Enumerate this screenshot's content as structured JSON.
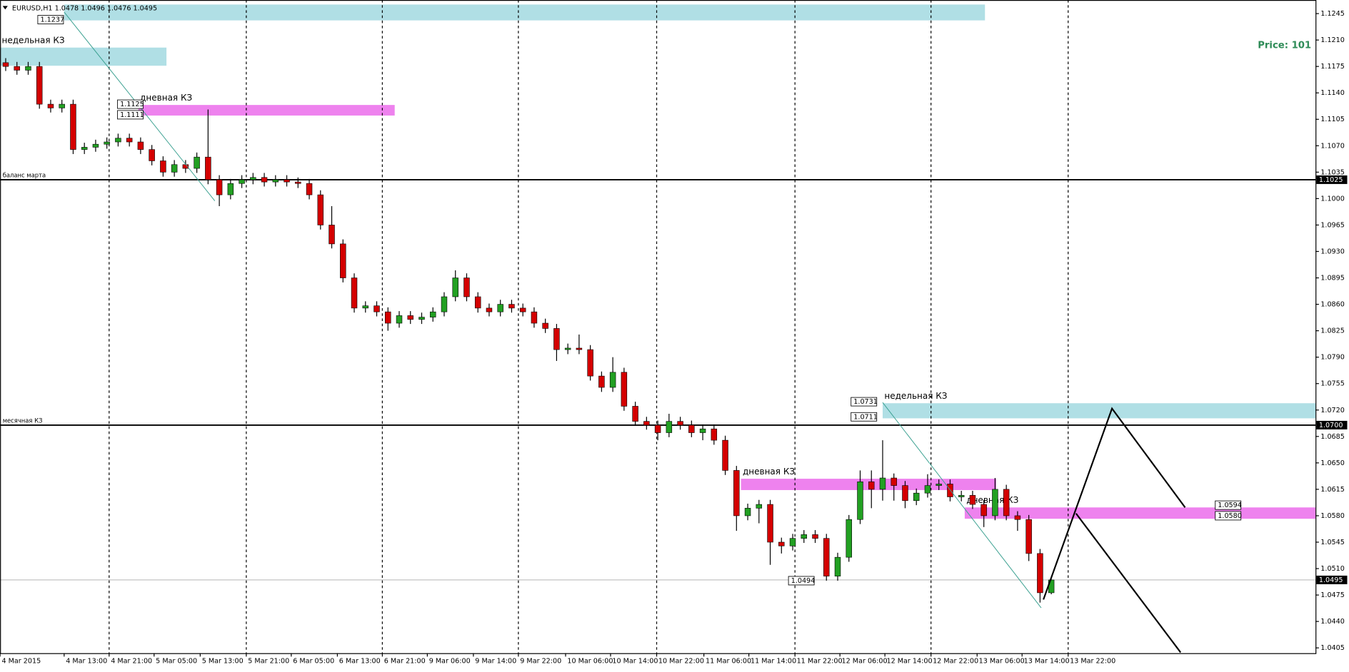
{
  "chart_data": {
    "type": "candlestick",
    "symbol": "EURUSD,H1",
    "annotation": "Price: 101",
    "up_color": "#22a022",
    "down_color": "#d40000",
    "xlim": [
      -0.5,
      116.5
    ],
    "ylim": [
      1.0398,
      1.1263
    ],
    "candles": {
      "open": [
        1.118,
        1.1175,
        1.117,
        1.1175,
        1.1125,
        1.112,
        1.1125,
        1.1065,
        1.1068,
        1.1072,
        1.1075,
        1.108,
        1.1075,
        1.1065,
        1.105,
        1.1035,
        1.1045,
        1.104,
        1.1055,
        1.1025,
        1.1005,
        1.102,
        1.1025,
        1.1028,
        1.1022,
        1.1025,
        1.1022,
        1.102,
        1.1005,
        1.0965,
        1.094,
        1.0895,
        1.0855,
        1.0858,
        1.085,
        1.0835,
        1.0845,
        1.084,
        1.0843,
        1.085,
        1.087,
        1.0895,
        1.087,
        1.0855,
        1.085,
        1.086,
        1.0855,
        1.085,
        1.0835,
        1.0828,
        1.08,
        1.0802,
        1.08,
        1.0765,
        1.075,
        1.077,
        1.0725,
        1.0705,
        1.07,
        1.069,
        1.0705,
        1.07,
        1.069,
        1.0695,
        1.068,
        1.064,
        1.058,
        1.059,
        1.0595,
        1.0545,
        1.054,
        1.055,
        1.0555,
        1.055,
        1.05,
        1.0525,
        1.0575,
        1.0625,
        1.0615,
        1.063,
        1.062,
        1.06,
        1.061,
        1.062,
        1.0622,
        1.0605,
        1.0607,
        1.0595,
        1.058,
        1.0615,
        1.058,
        1.0575,
        1.053,
        1.0478
      ],
      "high": [
        1.1186,
        1.1181,
        1.1181,
        1.1181,
        1.1131,
        1.1131,
        1.1131,
        1.1074,
        1.1078,
        1.1081,
        1.1086,
        1.1086,
        1.1081,
        1.1071,
        1.1056,
        1.1051,
        1.1051,
        1.1061,
        1.1118,
        1.1031,
        1.1026,
        1.1031,
        1.1034,
        1.1034,
        1.1031,
        1.1031,
        1.1028,
        1.1026,
        1.1011,
        1.099,
        1.0946,
        1.0901,
        1.0864,
        1.0864,
        1.0856,
        1.0851,
        1.0851,
        1.0849,
        1.0856,
        1.0876,
        1.0905,
        1.0901,
        1.0876,
        1.0861,
        1.0866,
        1.0866,
        1.0861,
        1.0856,
        1.0841,
        1.0834,
        1.0808,
        1.082,
        1.0806,
        1.0771,
        1.079,
        1.0776,
        1.0731,
        1.0711,
        1.0706,
        1.0715,
        1.0711,
        1.0706,
        1.0701,
        1.0701,
        1.0686,
        1.0646,
        1.0596,
        1.0601,
        1.0601,
        1.0551,
        1.0556,
        1.0561,
        1.0561,
        1.0556,
        1.0531,
        1.0581,
        1.064,
        1.064,
        1.068,
        1.0636,
        1.0626,
        1.0616,
        1.0635,
        1.0628,
        1.0628,
        1.0613,
        1.0613,
        1.0601,
        1.063,
        1.0621,
        1.0586,
        1.0581,
        1.0536,
        1.0496
      ],
      "low": [
        1.1169,
        1.1164,
        1.1164,
        1.1119,
        1.1114,
        1.1114,
        1.1059,
        1.1059,
        1.1062,
        1.1066,
        1.1069,
        1.1069,
        1.1059,
        1.1044,
        1.1029,
        1.1029,
        1.1034,
        1.1034,
        1.1019,
        1.099,
        1.0999,
        1.1014,
        1.1019,
        1.1016,
        1.1016,
        1.1016,
        1.1014,
        1.0999,
        1.0959,
        1.0934,
        1.0889,
        1.0849,
        1.0849,
        1.0844,
        1.0825,
        1.0829,
        1.0834,
        1.0834,
        1.0837,
        1.0844,
        1.0864,
        1.0864,
        1.0849,
        1.0844,
        1.0844,
        1.0849,
        1.0844,
        1.0829,
        1.0822,
        1.0785,
        1.0794,
        1.0794,
        1.0759,
        1.0744,
        1.0744,
        1.0719,
        1.0699,
        1.0694,
        1.068,
        1.0684,
        1.0694,
        1.0684,
        1.068,
        1.0674,
        1.0634,
        1.056,
        1.0574,
        1.057,
        1.0515,
        1.053,
        1.0534,
        1.0544,
        1.0544,
        1.0494,
        1.0494,
        1.0519,
        1.0569,
        1.059,
        1.06,
        1.06,
        1.059,
        1.0594,
        1.0604,
        1.0614,
        1.0599,
        1.0599,
        1.0589,
        1.0565,
        1.0574,
        1.0574,
        1.056,
        1.052,
        1.0465,
        1.0476
      ],
      "close": [
        1.1175,
        1.117,
        1.1175,
        1.1125,
        1.112,
        1.1125,
        1.1065,
        1.1068,
        1.1072,
        1.1075,
        1.108,
        1.1075,
        1.1065,
        1.105,
        1.1035,
        1.1045,
        1.104,
        1.1055,
        1.1025,
        1.1005,
        1.102,
        1.1025,
        1.1028,
        1.1022,
        1.1025,
        1.1022,
        1.102,
        1.1005,
        1.0965,
        1.094,
        1.0895,
        1.0855,
        1.0858,
        1.085,
        1.0835,
        1.0845,
        1.084,
        1.0843,
        1.085,
        1.087,
        1.0895,
        1.087,
        1.0855,
        1.085,
        1.086,
        1.0855,
        1.085,
        1.0835,
        1.0828,
        1.08,
        1.0802,
        1.08,
        1.0765,
        1.075,
        1.077,
        1.0725,
        1.0705,
        1.07,
        1.069,
        1.0705,
        1.07,
        1.069,
        1.0695,
        1.068,
        1.064,
        1.058,
        1.059,
        1.0595,
        1.0545,
        1.054,
        1.055,
        1.0555,
        1.055,
        1.05,
        1.0525,
        1.0575,
        1.0625,
        1.0615,
        1.063,
        1.062,
        1.06,
        1.061,
        1.062,
        1.0622,
        1.0605,
        1.0607,
        1.0595,
        1.058,
        1.0615,
        1.058,
        1.0575,
        1.053,
        1.0478,
        1.0495
      ]
    },
    "xticks": [
      {
        "value": -0.5,
        "label": "4 Mar 2015"
      },
      {
        "value": 5.2,
        "label": "4 Mar 13:00"
      },
      {
        "value": 9.2,
        "label": "4 Mar 21:00"
      },
      {
        "value": 13.2,
        "label": "5 Mar 05:00"
      },
      {
        "value": 17.3,
        "label": "5 Mar 13:00"
      },
      {
        "value": 21.4,
        "label": "5 Mar 21:00"
      },
      {
        "value": 25.4,
        "label": "6 Mar 05:00"
      },
      {
        "value": 29.5,
        "label": "6 Mar 13:00"
      },
      {
        "value": 33.5,
        "label": "6 Mar 21:00"
      },
      {
        "value": 37.5,
        "label": "9 Mar 06:00"
      },
      {
        "value": 41.6,
        "label": "9 Mar 14:00"
      },
      {
        "value": 45.6,
        "label": "9 Mar 22:00"
      },
      {
        "value": 49.8,
        "label": "10 Mar 06:00"
      },
      {
        "value": 53.8,
        "label": "10 Mar 14:00"
      },
      {
        "value": 57.9,
        "label": "10 Mar 22:00"
      },
      {
        "value": 62.1,
        "label": "11 Mar 06:00"
      },
      {
        "value": 66.1,
        "label": "11 Mar 14:00"
      },
      {
        "value": 70.2,
        "label": "11 Mar 22:00"
      },
      {
        "value": 74.2,
        "label": "12 Mar 06:00"
      },
      {
        "value": 78.2,
        "label": "12 Mar 14:00"
      },
      {
        "value": 82.3,
        "label": "12 Mar 22:00"
      },
      {
        "value": 86.4,
        "label": "13 Mar 06:00"
      },
      {
        "value": 90.4,
        "label": "13 Mar 14:00"
      },
      {
        "value": 94.5,
        "label": "13 Mar 22:00"
      }
    ],
    "yticks": [
      1.1245,
      {
        "value": 1.121,
        "label": "1.1210"
      },
      1.1175,
      {
        "value": 1.114,
        "label": "1.1140"
      },
      1.1105,
      {
        "value": 1.107,
        "label": "1.1070"
      },
      1.1035,
      {
        "value": 1.1,
        "label": "1.1000"
      },
      1.0965,
      {
        "value": 1.093,
        "label": "1.0930"
      },
      1.0895,
      {
        "value": 1.086,
        "label": "1.0860"
      },
      1.0825,
      {
        "value": 1.079,
        "label": "1.0790"
      },
      1.0755,
      {
        "value": 1.072,
        "label": "1.0720"
      },
      1.0685,
      {
        "value": 1.065,
        "label": "1.0650"
      },
      1.0615,
      {
        "value": 1.058,
        "label": "1.0580"
      },
      1.0545,
      {
        "value": 1.051,
        "label": "1.0510"
      },
      1.0475,
      {
        "value": 1.044,
        "label": "1.0440"
      },
      1.0405
    ],
    "hlines": [
      {
        "value": 1.1025,
        "name": "баланс марта"
      },
      {
        "value": 1.07,
        "label": "1.0700",
        "name": "месячная КЗ"
      }
    ],
    "zones": [
      {
        "from": 5.2,
        "to": 87.1,
        "low": 1.1236,
        "high": 1.1257,
        "color": "#b0dfe5"
      },
      {
        "from": -0.5,
        "to": 14.3,
        "low": 1.1176,
        "high": 1.12,
        "color": "#b0dfe5",
        "label": "недельная КЗ"
      },
      {
        "from": 11.8,
        "to": 34.6,
        "low": 1.111,
        "high": 1.1124,
        "color": "#ee82ee",
        "label": "дневная КЗ"
      },
      {
        "from": 78.0,
        "to": 116.5,
        "low": 1.0709,
        "high": 1.0729,
        "color": "#b0dfe5",
        "label": "недельная КЗ"
      },
      {
        "from": 65.4,
        "to": 88.1,
        "low": 1.0614,
        "high": 1.0629,
        "color": "#ee82ee",
        "label": "дневная КЗ"
      },
      {
        "from": 85.3,
        "to": 116.5,
        "low": 1.0576,
        "high": 1.0591,
        "color": "#ee82ee",
        "label": "дневная КЗ"
      }
    ],
    "price_labels": [
      1.1237,
      1.1125,
      1.1111,
      1.0731,
      1.0711,
      1.0494,
      1.0594,
      {
        "value": 1.058,
        "label": "1.0580"
      }
    ],
    "trendlines": [
      {
        "color": "#3aa090",
        "x": [
          5.2,
          18.6
        ],
        "y": [
          1.1247,
          1.0997
        ]
      },
      {
        "color": "#3aa090",
        "x": [
          78.0,
          92.1
        ],
        "y": [
          1.073,
          1.0458
        ]
      },
      {
        "color": "#000000",
        "x": [
          92.3,
          98.4,
          104.9
        ],
        "y": [
          1.0469,
          1.0722,
          1.0591
        ]
      },
      {
        "color": "#000000",
        "x": [
          95.2,
          104.5
        ],
        "y": [
          1.0583,
          1.0399
        ]
      }
    ]
  }
}
